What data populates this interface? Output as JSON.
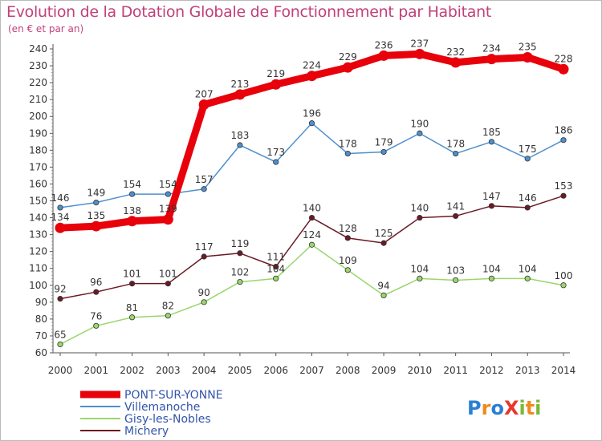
{
  "header": {
    "title": "Evolution de la Dotation Globale de Fonctionnement par Habitant",
    "subtitle": "(en € et par an)"
  },
  "brand": {
    "text": "ProXiti",
    "letters": [
      "P",
      "r",
      "o",
      "X",
      "i",
      "t",
      "i"
    ],
    "colors": [
      "#2a7fd4",
      "#f08a1c",
      "#2a7fd4",
      "#e8372e",
      "#7ab83a",
      "#f08a1c",
      "#7ab83a"
    ]
  },
  "chart_data": {
    "type": "line",
    "title": "Evolution de la Dotation Globale de Fonctionnement par Habitant",
    "subtitle": "(en € et par an)",
    "x": [
      2000,
      2001,
      2002,
      2003,
      2004,
      2005,
      2006,
      2007,
      2008,
      2009,
      2010,
      2011,
      2012,
      2013,
      2014
    ],
    "ylim": [
      60,
      240
    ],
    "yticks": [
      60,
      70,
      80,
      90,
      100,
      110,
      120,
      130,
      140,
      150,
      160,
      170,
      180,
      190,
      200,
      210,
      220,
      230,
      240
    ],
    "grid": false,
    "legend_position": "bottom-left",
    "series": [
      {
        "name": "PONT-SUR-YONNE",
        "color": "#e8000b",
        "values": [
          134,
          135,
          138,
          139,
          207,
          213,
          219,
          224,
          229,
          236,
          237,
          232,
          234,
          235,
          228
        ]
      },
      {
        "name": "Villemanoche",
        "color": "#4f8fcd",
        "values": [
          146,
          149,
          154,
          154,
          157,
          183,
          173,
          196,
          178,
          179,
          190,
          178,
          185,
          175,
          186
        ]
      },
      {
        "name": "Gisy-les-Nobles",
        "color": "#9ad66e",
        "values": [
          65,
          76,
          81,
          82,
          90,
          102,
          104,
          124,
          109,
          94,
          104,
          103,
          104,
          104,
          100
        ]
      },
      {
        "name": "Michery",
        "color": "#6b1a24",
        "values": [
          92,
          96,
          101,
          101,
          117,
          119,
          111,
          140,
          128,
          125,
          140,
          141,
          147,
          146,
          153
        ]
      }
    ]
  }
}
